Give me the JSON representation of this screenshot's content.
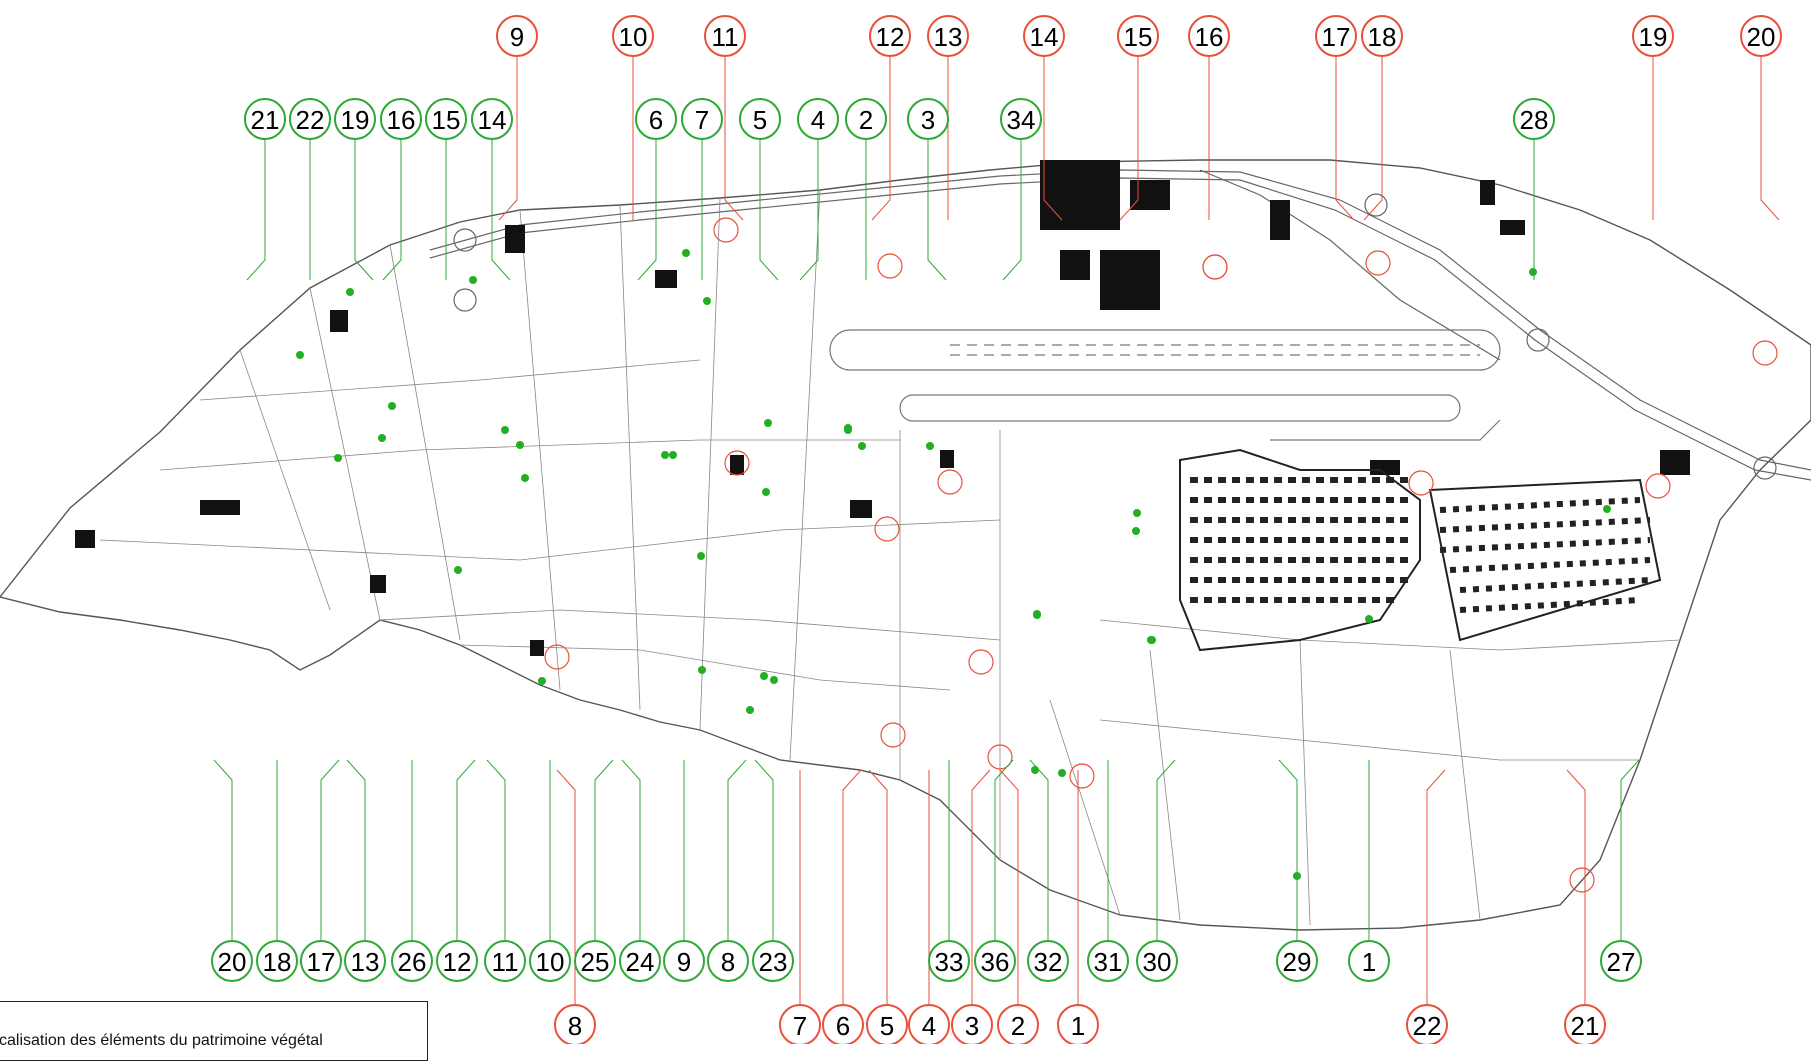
{
  "colors": {
    "heritage_marker": "#e8503a",
    "vegetal_marker": "#2ea836",
    "vegetal_point": "#22b022",
    "parcel_line": "#555555",
    "building": "#111111"
  },
  "legend": {
    "text": "calisation des éléments du patrimoine végétal"
  },
  "labels": {
    "top_heritage": [
      "9",
      "10",
      "11",
      "12",
      "13",
      "14",
      "15",
      "16",
      "17",
      "18",
      "19",
      "20"
    ],
    "top_vegetal": [
      "21",
      "22",
      "19",
      "16",
      "15",
      "14",
      "6",
      "7",
      "5",
      "4",
      "2",
      "3",
      "34",
      "28"
    ],
    "bottom_vegetal": [
      "20",
      "18",
      "17",
      "13",
      "26",
      "12",
      "11",
      "10",
      "25",
      "24",
      "9",
      "8",
      "23",
      "33",
      "36",
      "32",
      "31",
      "30",
      "29",
      "1",
      "27"
    ],
    "bottom_heritage": [
      "8",
      "7",
      "6",
      "5",
      "4",
      "3",
      "2",
      "1",
      "22",
      "21"
    ]
  }
}
